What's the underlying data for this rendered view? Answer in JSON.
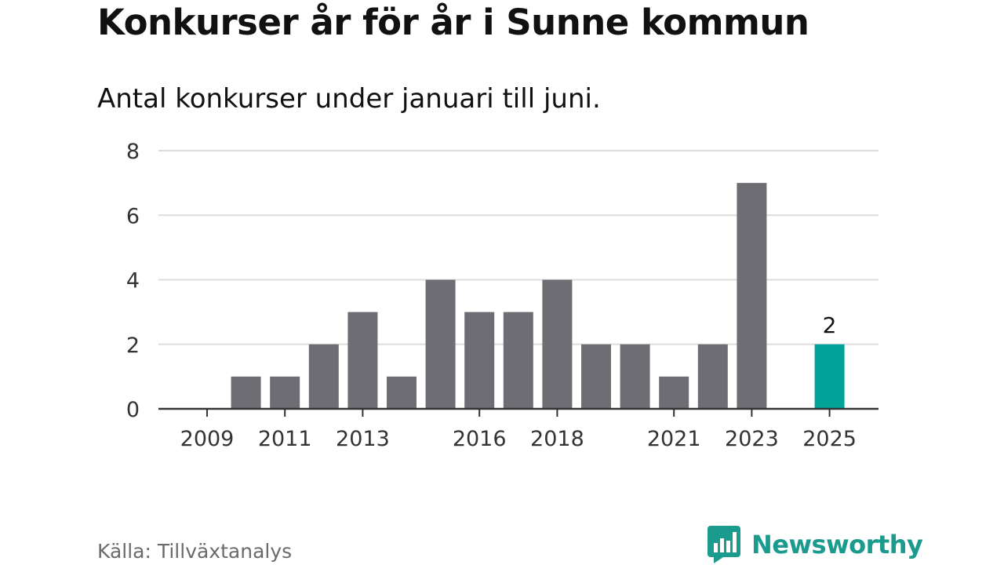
{
  "header": {
    "title": "Konkurser år för år i Sunne kommun",
    "subtitle": "Antal konkurser under januari till juni."
  },
  "footer": {
    "source": "Källa: Tillväxtanalys",
    "brand": "Newsworthy"
  },
  "colors": {
    "bar": "#6e6d73",
    "highlight": "#00a398",
    "grid": "#dddddd",
    "axis": "#333333",
    "brand": "#1a9b8d"
  },
  "chart_data": {
    "type": "bar",
    "categories": [
      "2009",
      "2010",
      "2011",
      "2012",
      "2013",
      "2014",
      "2015",
      "2016",
      "2017",
      "2018",
      "2019",
      "2020",
      "2021",
      "2022",
      "2023",
      "2024",
      "2025"
    ],
    "values": [
      0,
      1,
      1,
      2,
      3,
      1,
      4,
      3,
      3,
      4,
      2,
      2,
      1,
      2,
      7,
      0,
      2
    ],
    "highlight_category": "2025",
    "highlight_label": "2",
    "x_tick_labels": [
      "2009",
      "2011",
      "2013",
      "2016",
      "2018",
      "2021",
      "2023",
      "2025"
    ],
    "y_ticks": [
      0,
      2,
      4,
      6,
      8
    ],
    "ylim": [
      0,
      8
    ],
    "grid": true,
    "legend": false
  }
}
